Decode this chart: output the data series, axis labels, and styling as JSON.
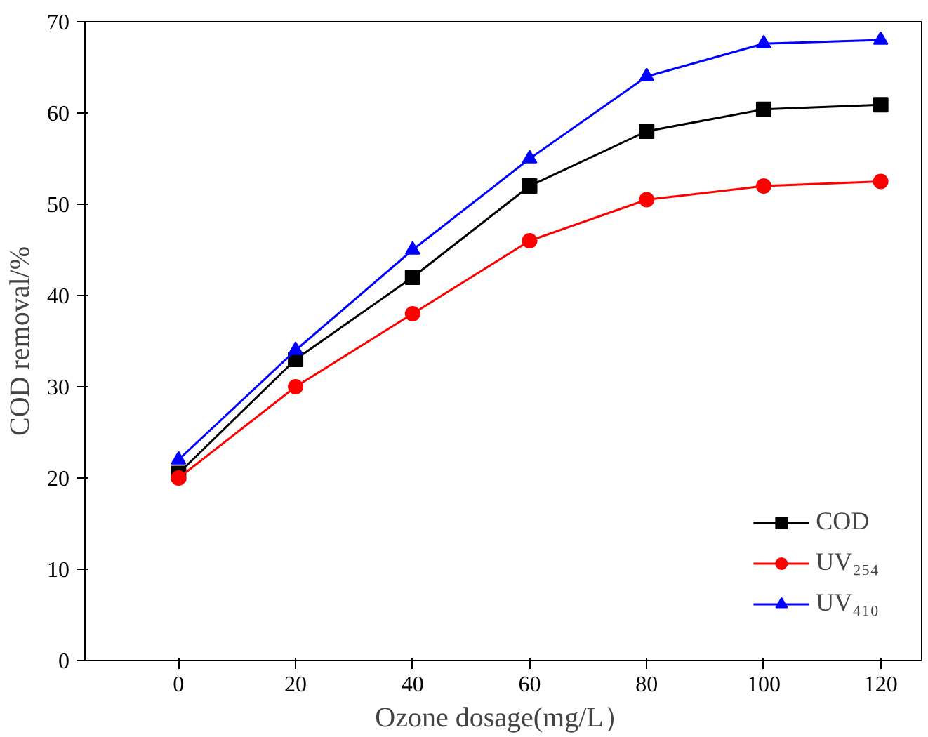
{
  "chart_data": {
    "type": "line",
    "xlabel": "Ozone dosage(mg/L）",
    "ylabel": "COD removal/%",
    "x": [
      0,
      20,
      40,
      60,
      80,
      100,
      120
    ],
    "series": [
      {
        "name": "COD",
        "color": "#000000",
        "marker": "square",
        "values": [
          20.5,
          33,
          42,
          52,
          58,
          60.4,
          60.9
        ]
      },
      {
        "name": "UV₂₅₄",
        "color": "#ff0000",
        "marker": "circle",
        "values": [
          20,
          30,
          38,
          46,
          50.5,
          52,
          52.5
        ]
      },
      {
        "name": "UV₄₁₀",
        "color": "#0000ff",
        "marker": "triangle",
        "values": [
          22,
          34,
          45,
          55,
          64,
          67.6,
          68
        ]
      }
    ],
    "xlim": [
      -16,
      127
    ],
    "ylim": [
      0,
      70
    ],
    "xticks": [
      0,
      20,
      40,
      60,
      80,
      100,
      120
    ],
    "yticks": [
      0,
      10,
      20,
      30,
      40,
      50,
      60,
      70
    ],
    "grid": false,
    "legend": "bottom right"
  }
}
